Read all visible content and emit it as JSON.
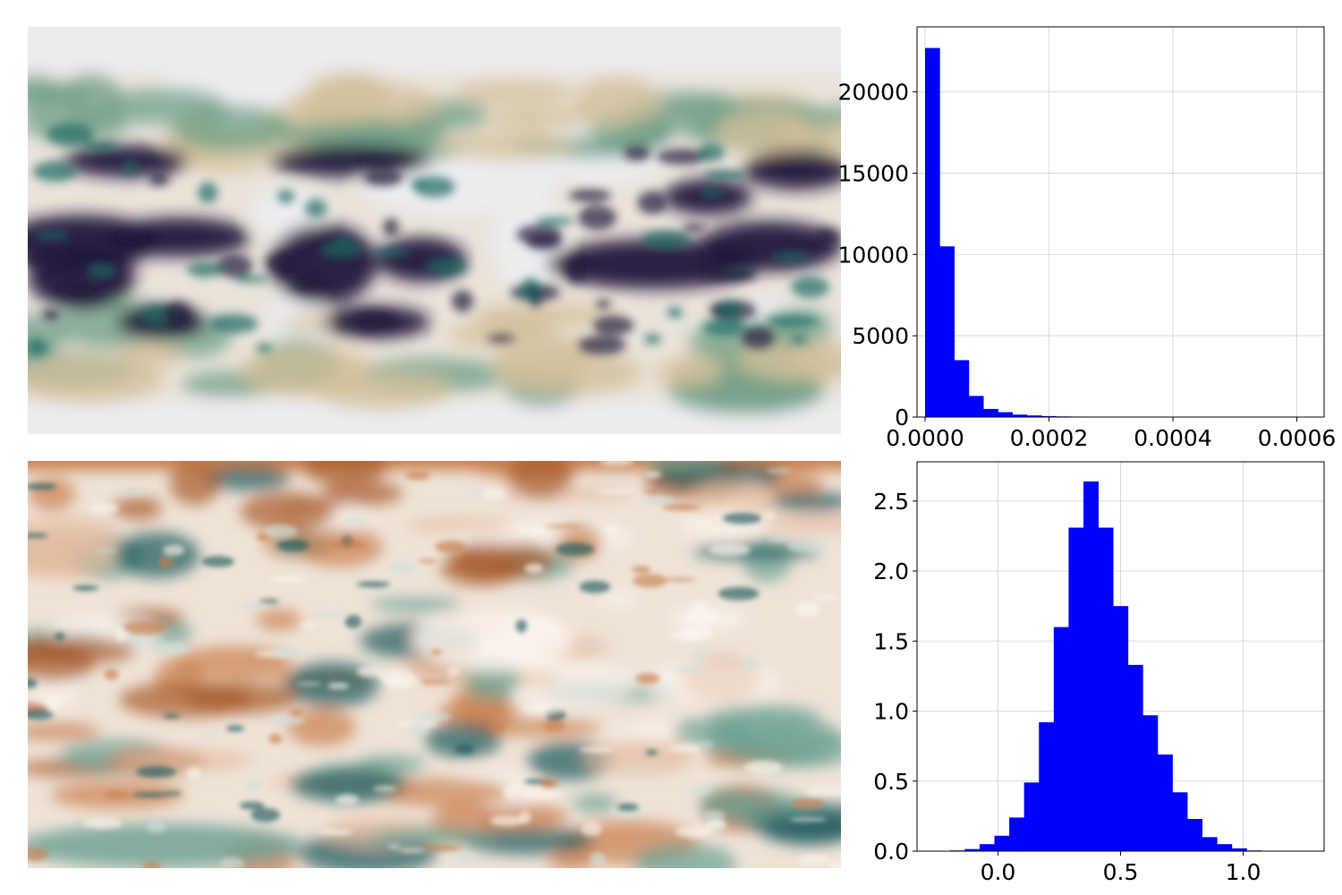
{
  "colors": {
    "bar": "#0000ff",
    "grid": "#d9d9d9",
    "axis": "#000000",
    "map_top_palette": [
      "#ededf0",
      "#e8dcc7",
      "#d1bf99",
      "#6f9e86",
      "#1d6a63",
      "#24193b"
    ],
    "map_bottom_palette": [
      "#1c5a5c",
      "#6a9f92",
      "#cfe0da",
      "#faf4ee",
      "#e2bba0",
      "#c77e4c",
      "#a5592a"
    ]
  },
  "chart_data": [
    {
      "type": "heatmap",
      "panel": "top-left map",
      "title": "",
      "colormap": "white-tan-green-dark-navy"
    },
    {
      "type": "bar",
      "panel": "top-right histogram",
      "title": "",
      "xlabel": "",
      "ylabel": "",
      "xlim": [
        -1.3e-05,
        0.000644
      ],
      "ylim": [
        0,
        24000
      ],
      "grid": true,
      "bin_width": 2.35e-05,
      "bin_start": 0.0,
      "values": [
        22700,
        10500,
        3500,
        1300,
        500,
        300,
        150,
        100,
        60,
        40,
        30,
        20,
        10,
        8,
        6,
        4,
        3,
        2,
        1,
        1
      ],
      "xticks": [
        0.0,
        0.0002,
        0.0004,
        0.0006
      ],
      "xtick_labels": [
        "0.0000",
        "0.0002",
        "0.0004",
        "0.0006"
      ],
      "yticks": [
        0,
        5000,
        10000,
        15000,
        20000
      ],
      "ytick_labels": [
        "0",
        "5000",
        "10000",
        "15000",
        "20000"
      ]
    },
    {
      "type": "heatmap",
      "panel": "bottom-left map",
      "title": "",
      "colormap": "teal-white-brown diverging"
    },
    {
      "type": "bar",
      "panel": "bottom-right histogram",
      "title": "",
      "xlabel": "",
      "ylabel": "",
      "xlim": [
        -0.33,
        1.33
      ],
      "ylim": [
        0,
        2.78
      ],
      "grid": true,
      "bin_width": 0.0605,
      "bin_start": -0.196,
      "values": [
        0.005,
        0.015,
        0.05,
        0.11,
        0.24,
        0.49,
        0.92,
        1.6,
        2.31,
        2.64,
        2.31,
        1.75,
        1.33,
        0.97,
        0.69,
        0.42,
        0.23,
        0.1,
        0.05,
        0.02,
        0.005
      ],
      "xticks": [
        0.0,
        0.5,
        1.0
      ],
      "xtick_labels": [
        "0.0",
        "0.5",
        "1.0"
      ],
      "yticks": [
        0.0,
        0.5,
        1.0,
        1.5,
        2.0,
        2.5
      ],
      "ytick_labels": [
        "0.0",
        "0.5",
        "1.0",
        "1.5",
        "2.0",
        "2.5"
      ]
    }
  ]
}
